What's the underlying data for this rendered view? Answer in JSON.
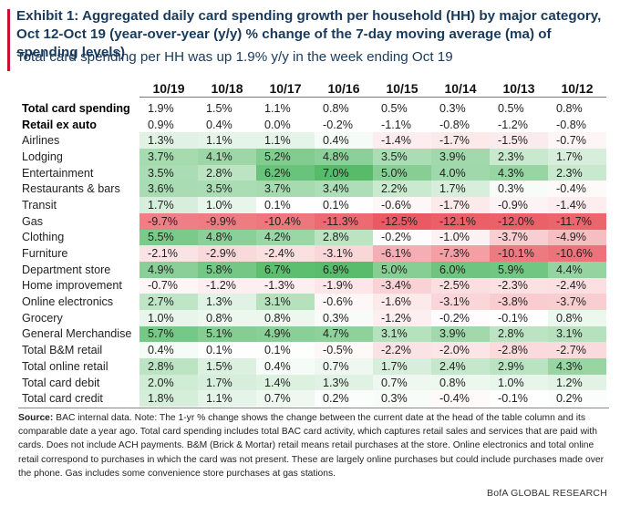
{
  "header": {
    "title": "Exhibit 1: Aggregated daily card spending growth per household (HH) by major category, Oct 12-Oct 19 (year-over-year (y/y) % change of the 7-day moving average (ma) of spending levels)",
    "subtitle": "Total card spending per HH was up 1.9% y/y in the week ending Oct 19"
  },
  "table": {
    "columns": [
      "10/19",
      "10/18",
      "10/17",
      "10/16",
      "10/15",
      "10/14",
      "10/13",
      "10/12"
    ],
    "rows": [
      {
        "label": "Total card spending",
        "values": [
          "1.9%",
          "1.5%",
          "1.1%",
          "0.8%",
          "0.5%",
          "0.3%",
          "0.5%",
          "0.8%"
        ]
      },
      {
        "label": "Retail ex auto",
        "values": [
          "0.9%",
          "0.4%",
          "0.0%",
          "-0.2%",
          "-1.1%",
          "-0.8%",
          "-1.2%",
          "-0.8%"
        ]
      },
      {
        "label": "Airlines",
        "values": [
          "1.3%",
          "1.1%",
          "1.1%",
          "0.4%",
          "-1.4%",
          "-1.7%",
          "-1.5%",
          "-0.7%"
        ]
      },
      {
        "label": "Lodging",
        "values": [
          "3.7%",
          "4.1%",
          "5.2%",
          "4.8%",
          "3.5%",
          "3.9%",
          "2.3%",
          "1.7%"
        ]
      },
      {
        "label": "Entertainment",
        "values": [
          "3.5%",
          "2.8%",
          "6.2%",
          "7.0%",
          "5.0%",
          "4.0%",
          "4.3%",
          "2.3%"
        ]
      },
      {
        "label": "Restaurants & bars",
        "values": [
          "3.6%",
          "3.5%",
          "3.7%",
          "3.4%",
          "2.2%",
          "1.7%",
          "0.3%",
          "-0.4%"
        ]
      },
      {
        "label": "Transit",
        "values": [
          "1.7%",
          "1.0%",
          "0.1%",
          "0.1%",
          "-0.6%",
          "-1.7%",
          "-0.9%",
          "-1.4%"
        ]
      },
      {
        "label": "Gas",
        "values": [
          "-9.7%",
          "-9.9%",
          "-10.4%",
          "-11.3%",
          "-12.5%",
          "-12.1%",
          "-12.0%",
          "-11.7%"
        ]
      },
      {
        "label": "Clothing",
        "values": [
          "5.5%",
          "4.8%",
          "4.2%",
          "2.8%",
          "-0.2%",
          "-1.0%",
          "-3.7%",
          "-4.9%"
        ]
      },
      {
        "label": "Furniture",
        "values": [
          "-2.1%",
          "-2.9%",
          "-2.4%",
          "-3.1%",
          "-6.1%",
          "-7.3%",
          "-10.1%",
          "-10.6%"
        ]
      },
      {
        "label": "Department store",
        "values": [
          "4.9%",
          "5.8%",
          "6.7%",
          "6.9%",
          "5.0%",
          "6.0%",
          "5.9%",
          "4.4%"
        ]
      },
      {
        "label": "Home improvement",
        "values": [
          "-0.7%",
          "-1.2%",
          "-1.3%",
          "-1.9%",
          "-3.4%",
          "-2.5%",
          "-2.3%",
          "-2.4%"
        ]
      },
      {
        "label": "Online electronics",
        "values": [
          "2.7%",
          "1.3%",
          "3.1%",
          "-0.6%",
          "-1.6%",
          "-3.1%",
          "-3.8%",
          "-3.7%"
        ]
      },
      {
        "label": "Grocery",
        "values": [
          "1.0%",
          "0.8%",
          "0.8%",
          "0.3%",
          "-1.2%",
          "-0.2%",
          "-0.1%",
          "0.8%"
        ]
      },
      {
        "label": "General Merchandise",
        "values": [
          "5.7%",
          "5.1%",
          "4.9%",
          "4.7%",
          "3.1%",
          "3.9%",
          "2.8%",
          "3.1%"
        ]
      },
      {
        "label": "Total B&M retail",
        "values": [
          "0.4%",
          "0.1%",
          "0.1%",
          "-0.5%",
          "-2.2%",
          "-2.0%",
          "-2.8%",
          "-2.7%"
        ]
      },
      {
        "label": "Total online retail",
        "values": [
          "2.8%",
          "1.5%",
          "0.4%",
          "0.7%",
          "1.7%",
          "2.4%",
          "2.9%",
          "4.3%"
        ]
      },
      {
        "label": "Total card debit",
        "values": [
          "2.0%",
          "1.7%",
          "1.4%",
          "1.3%",
          "0.7%",
          "0.8%",
          "1.0%",
          "1.2%"
        ]
      },
      {
        "label": "Total card credit",
        "values": [
          "1.8%",
          "1.1%",
          "0.7%",
          "0.2%",
          "0.3%",
          "-0.4%",
          "-0.1%",
          "0.2%"
        ]
      }
    ]
  },
  "footer": {
    "source_label": "Source:",
    "source_text": " BAC internal data. Note: The 1-yr % change shows the change between the current date at the head of the table column and its comparable date a year ago. Total card spending includes total BAC card activity, which captures retail sales and services that are paid with cards. Does not include ACH payments. B&M (Brick & Mortar) retail means retail purchases at the store. Online electronics and total online retail correspond to purchases in which the card was not present. These are largely online purchases but could include purchases made over the phone. Gas includes some convenience store purchases at gas stations.",
    "brand": "BofA GLOBAL RESEARCH"
  },
  "colors": {
    "accent": "#c8102e",
    "title": "#1a3a5c",
    "positive_max": "#57bb6a",
    "negative_max": "#ea5a63"
  }
}
